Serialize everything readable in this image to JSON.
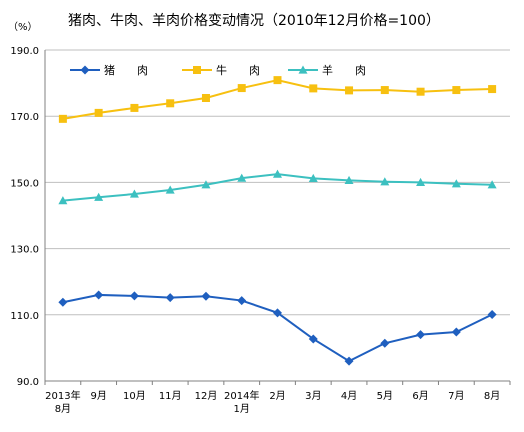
{
  "chart_data": {
    "type": "line",
    "title": "猪肉、牛肉、羊肉价格变动情况（2010年12月价格=100）",
    "unit_label": "（%）",
    "categories": [
      {
        "line1": "2013年",
        "line2": "8月"
      },
      {
        "line1": "9月",
        "line2": ""
      },
      {
        "line1": "10月",
        "line2": ""
      },
      {
        "line1": "11月",
        "line2": ""
      },
      {
        "line1": "12月",
        "line2": ""
      },
      {
        "line1": "2014年",
        "line2": "1月"
      },
      {
        "line1": "2月",
        "line2": ""
      },
      {
        "line1": "3月",
        "line2": ""
      },
      {
        "line1": "4月",
        "line2": ""
      },
      {
        "line1": "5月",
        "line2": ""
      },
      {
        "line1": "6月",
        "line2": ""
      },
      {
        "line1": "7月",
        "line2": ""
      },
      {
        "line1": "8月",
        "line2": ""
      }
    ],
    "y_ticks": [
      "190.0",
      "170.0",
      "150.0",
      "130.0",
      "110.0",
      "90.0"
    ],
    "ylim": [
      90,
      190
    ],
    "grid": true,
    "legend_position": "top-left",
    "series": [
      {
        "name": "猪　　肉",
        "color": "#1f5fbf",
        "marker": "diamond",
        "values": [
          113.8,
          116.0,
          115.7,
          115.2,
          115.6,
          114.3,
          110.6,
          102.7,
          96.0,
          101.4,
          104.0,
          104.8,
          110.1
        ]
      },
      {
        "name": "牛　　肉",
        "color": "#f7c010",
        "marker": "square",
        "values": [
          169.2,
          171.0,
          172.5,
          173.9,
          175.5,
          178.5,
          180.9,
          178.4,
          177.8,
          177.9,
          177.4,
          177.9,
          178.2
        ]
      },
      {
        "name": "羊　　肉",
        "color": "#3cc0c0",
        "marker": "triangle",
        "values": [
          144.5,
          145.5,
          146.5,
          147.7,
          149.3,
          151.3,
          152.5,
          151.2,
          150.6,
          150.2,
          150.0,
          149.6,
          149.3
        ]
      }
    ]
  }
}
